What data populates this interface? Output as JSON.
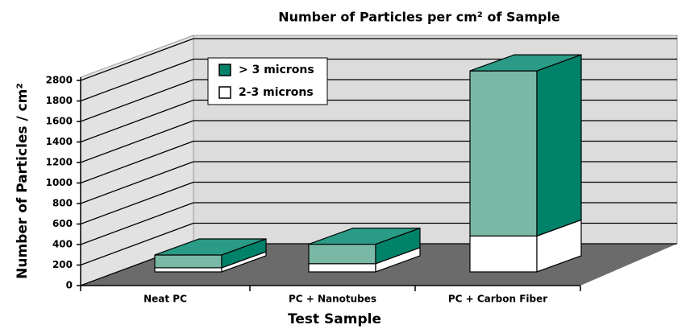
{
  "chart_data": {
    "type": "bar3d_stacked",
    "title": "Number of Particles per cm² of Sample",
    "xlabel": "Test Sample",
    "ylabel": "Number of Particles / cm²",
    "categories": [
      "Neat PC",
      "PC + Nanotubes",
      "PC + Carbon Fiber"
    ],
    "series": [
      {
        "name": "2-3 microns",
        "color": "#ffffff",
        "values": [
          40,
          80,
          350
        ]
      },
      {
        "name": "> 3 microns",
        "color": "#7ab8a6",
        "values": [
          125,
          190,
          2250
        ]
      }
    ],
    "ylim": [
      0,
      2800
    ],
    "yticks": [
      0,
      200,
      400,
      600,
      800,
      1000,
      1200,
      1400,
      1600,
      1800,
      2800
    ],
    "grid": true,
    "legend": "top-left"
  }
}
